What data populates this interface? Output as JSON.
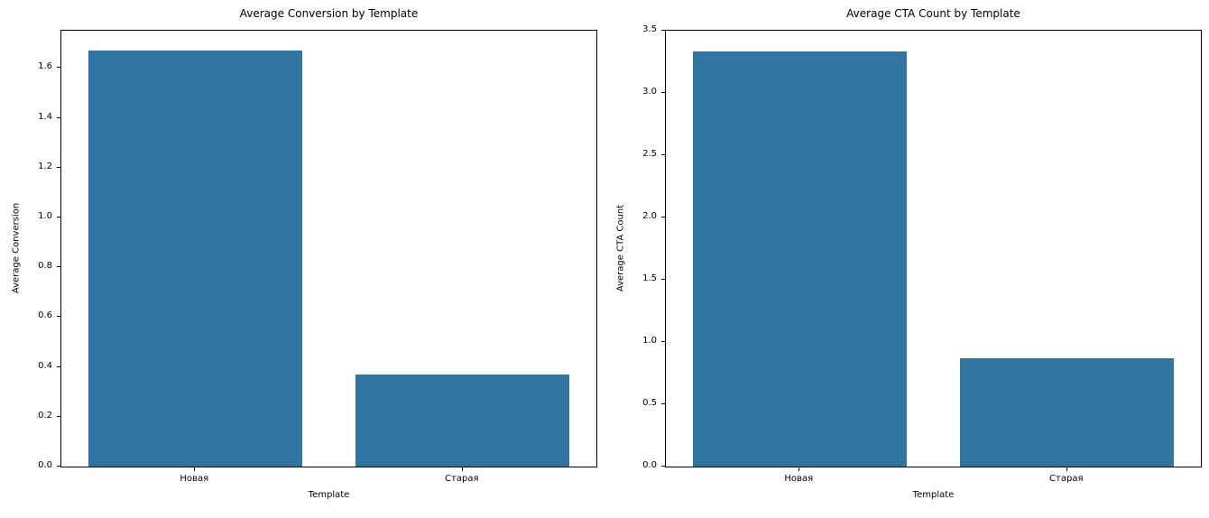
{
  "chart_data": [
    {
      "type": "bar",
      "title": "Average Conversion by Template",
      "xlabel": "Template",
      "ylabel": "Average Conversion",
      "categories": [
        "Новая",
        "Старая"
      ],
      "values": [
        1.67,
        0.37
      ],
      "ylim": [
        0,
        1.75
      ],
      "yticks": [
        0,
        0.2,
        0.4,
        0.6,
        0.8,
        1.0,
        1.2,
        1.4,
        1.6
      ],
      "bar_color": "#3274a1",
      "grid": false,
      "legend_position": "none"
    },
    {
      "type": "bar",
      "title": "Average CTA Count by Template",
      "xlabel": "Template",
      "ylabel": "Average CTA Count",
      "categories": [
        "Новая",
        "Старая"
      ],
      "values": [
        3.33,
        0.87
      ],
      "ylim": [
        0,
        3.5
      ],
      "yticks": [
        0,
        0.5,
        1.0,
        1.5,
        2.0,
        2.5,
        3.0,
        3.5
      ],
      "bar_color": "#3274a1",
      "grid": false,
      "legend_position": "none"
    }
  ]
}
